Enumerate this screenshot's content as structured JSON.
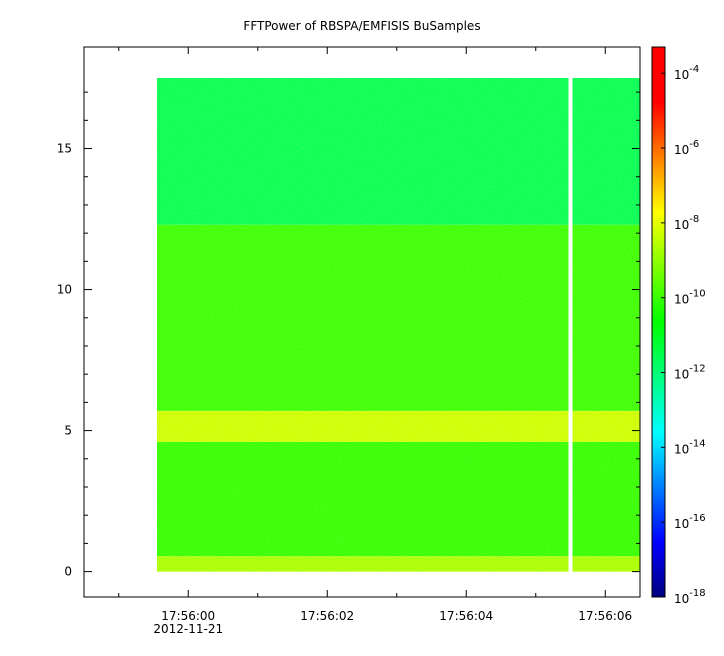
{
  "chart_data": {
    "type": "heatmap",
    "title": "FFTPower of RBSPA/EMFISIS  BuSamples",
    "xlabel": "",
    "ylabel": "",
    "x_ticks": [
      "17:56:00",
      "17:56:02",
      "17:56:04",
      "17:56:06"
    ],
    "x_date": "2012-11-21",
    "x_range_seconds": [
      -1.5,
      6.5
    ],
    "y_ticks": [
      "0",
      "5",
      "10",
      "15"
    ],
    "y_range": [
      -0.9,
      18.6
    ],
    "data_extent": {
      "x_start_s": -0.45,
      "x_end_s": 6.5,
      "y_min": 0,
      "y_max": 17.5
    },
    "data_gap": {
      "x_s": 5.5
    },
    "bands": [
      {
        "y_from": 0,
        "y_to": 0.55,
        "log10_power": -8.7
      },
      {
        "y_from": 0.55,
        "y_to": 4.6,
        "log10_power": -10.1
      },
      {
        "y_from": 4.6,
        "y_to": 5.7,
        "log10_power": -8.3
      },
      {
        "y_from": 5.7,
        "y_to": 12.3,
        "log10_power": -10.0
      },
      {
        "y_from": 12.3,
        "y_to": 17.5,
        "log10_power": -11.6
      }
    ],
    "colorbar": {
      "scale": "log",
      "range_exponents": [
        -18,
        -3.3
      ],
      "tick_labels": [
        {
          "base": "10",
          "exp": "-4",
          "value": -4
        },
        {
          "base": "10",
          "exp": "-6",
          "value": -6
        },
        {
          "base": "10",
          "exp": "-8",
          "value": -8
        },
        {
          "base": "10",
          "exp": "-10",
          "value": -10
        },
        {
          "base": "10",
          "exp": "-12",
          "value": -12
        },
        {
          "base": "10",
          "exp": "-14",
          "value": -14
        },
        {
          "base": "10",
          "exp": "-16",
          "value": -16
        },
        {
          "base": "10",
          "exp": "-18",
          "value": -18
        }
      ],
      "colors": [
        "#00007f",
        "#0000ff",
        "#007fff",
        "#00ffff",
        "#00ff7f",
        "#00ff00",
        "#7fff00",
        "#ffff00",
        "#ff7f00",
        "#ff0000",
        "#ff0000"
      ]
    }
  }
}
